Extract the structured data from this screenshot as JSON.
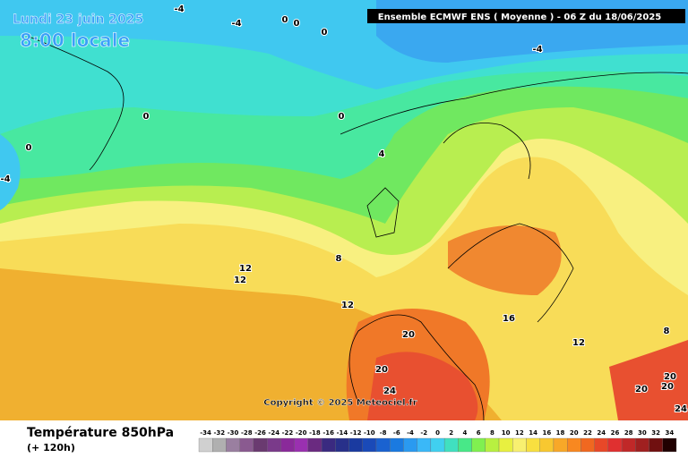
{
  "header": {
    "date": "Lundi 23 juin 2025",
    "time": "8:00 locale",
    "model": "Ensemble ECMWF ENS  ( Moyenne )  -  06 Z du 18/06/2025"
  },
  "footer": {
    "variable": "Température 850hPa",
    "lead": "(+ 120h)",
    "copyright": "Copyright © 2025 Meteociel.fr"
  },
  "contour_labels": [
    -4,
    -4,
    0,
    0,
    0,
    -4,
    0,
    0,
    0,
    -4,
    4,
    8,
    12,
    12,
    12,
    16,
    20,
    12,
    20,
    24,
    20,
    20,
    20,
    24,
    8
  ],
  "colorbar": {
    "ticks": [
      -34,
      -32,
      -30,
      -28,
      -26,
      -24,
      -22,
      -20,
      -18,
      -16,
      -14,
      -12,
      -10,
      -8,
      -6,
      -4,
      -2,
      0,
      2,
      4,
      6,
      8,
      10,
      12,
      14,
      16,
      18,
      20,
      22,
      24,
      26,
      28,
      30,
      32,
      34
    ],
    "colors": [
      "#d0d0d0",
      "#b0b0b0",
      "#9a7fa0",
      "#8a5a90",
      "#6a3a70",
      "#7a3a8a",
      "#8a2a9a",
      "#9a30b0",
      "#6a2a80",
      "#3a2a80",
      "#28308a",
      "#1a3aa0",
      "#1a4ab8",
      "#1a62d0",
      "#1a7ae0",
      "#2a9af0",
      "#3ab8f8",
      "#40d0f0",
      "#40e0c0",
      "#48e888",
      "#80f050",
      "#b8f040",
      "#e8f040",
      "#f8f070",
      "#f8e040",
      "#f8c830",
      "#f8a828",
      "#f88820",
      "#f06820",
      "#e84828",
      "#e03030",
      "#c02828",
      "#a02020",
      "#701010",
      "#200000"
    ]
  }
}
